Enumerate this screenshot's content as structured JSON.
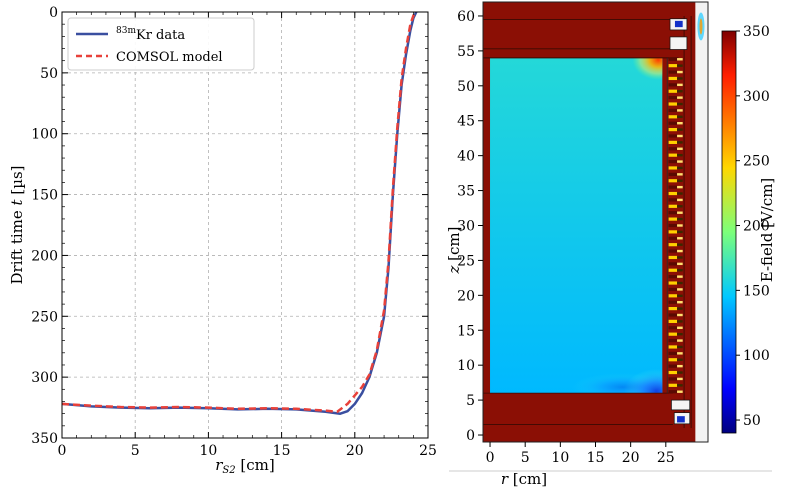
{
  "colors": {
    "kr": "#3a4fa0",
    "comsol": "#e8413a",
    "field_background": "#8b0f05"
  },
  "chart_data": [
    {
      "type": "line",
      "xlabel": "r_S2 [cm]",
      "xlabel_main": "r",
      "xlabel_sub": "S2",
      "xlabel_unit": " [cm]",
      "ylabel": "Drift time t [µs]",
      "ylabel_prefix": "Drift time ",
      "ylabel_var": "t",
      "ylabel_unit": " [µs]",
      "xlim": [
        0,
        25
      ],
      "ylim": [
        350,
        0
      ],
      "xticks": [
        0,
        5,
        10,
        15,
        20,
        25
      ],
      "yticks": [
        0,
        50,
        100,
        150,
        200,
        250,
        300,
        350
      ],
      "grid": true,
      "legend_position": "top-left",
      "series": [
        {
          "name": "83mKr data",
          "name_sup": "83m",
          "name_main": "Kr data",
          "style": "solid",
          "x": [
            0,
            2,
            4,
            6,
            8,
            10,
            12,
            14,
            16,
            18,
            19.0,
            19.5,
            20.0,
            20.5,
            21.0,
            21.5,
            22.0,
            22.3,
            22.6,
            22.9,
            23.2,
            23.5,
            23.8,
            24.0,
            24.2
          ],
          "y": [
            322,
            324,
            325,
            325.5,
            325,
            325.5,
            326.5,
            326,
            326.5,
            328.5,
            330,
            328,
            322,
            313,
            300,
            280,
            250,
            210,
            150,
            100,
            60,
            35,
            15,
            5,
            0
          ]
        },
        {
          "name": "COMSOL model",
          "style": "dashed",
          "x": [
            0,
            2,
            4,
            6,
            8,
            10,
            12,
            14,
            16,
            18,
            18.8,
            19.5,
            20.0,
            20.5,
            21.0,
            21.5,
            22.0,
            22.3,
            22.6,
            22.9,
            23.2,
            23.5,
            23.8,
            24.0,
            24.1
          ],
          "y": [
            322,
            323.5,
            324.5,
            325,
            324.5,
            325,
            326,
            325.5,
            326,
            327.5,
            328.5,
            322,
            315,
            308,
            298,
            278,
            245,
            205,
            145,
            95,
            55,
            30,
            10,
            3,
            0
          ]
        }
      ]
    },
    {
      "type": "heatmap",
      "xlabel": "r [cm]",
      "xlabel_var": "r",
      "xlabel_unit": " [cm]",
      "ylabel": "z [cm]",
      "ylabel_var": "z",
      "ylabel_unit": " [cm]",
      "xlim": [
        -1,
        31
      ],
      "ylim": [
        -1,
        62
      ],
      "xticks": [
        0,
        5,
        10,
        15,
        20,
        25
      ],
      "yticks": [
        0,
        5,
        10,
        15,
        20,
        25,
        30,
        35,
        40,
        45,
        50,
        55,
        60
      ],
      "colorbar": {
        "label": "E-field [V/cm]",
        "min": 40,
        "max": 350,
        "ticks": [
          50,
          100,
          150,
          200,
          250,
          300,
          350
        ]
      },
      "field_region": {
        "r": [
          0,
          24.5
        ],
        "z": [
          6,
          54
        ],
        "field_top": 160,
        "field_bottom": 140
      },
      "electrode_rings": 53
    }
  ]
}
